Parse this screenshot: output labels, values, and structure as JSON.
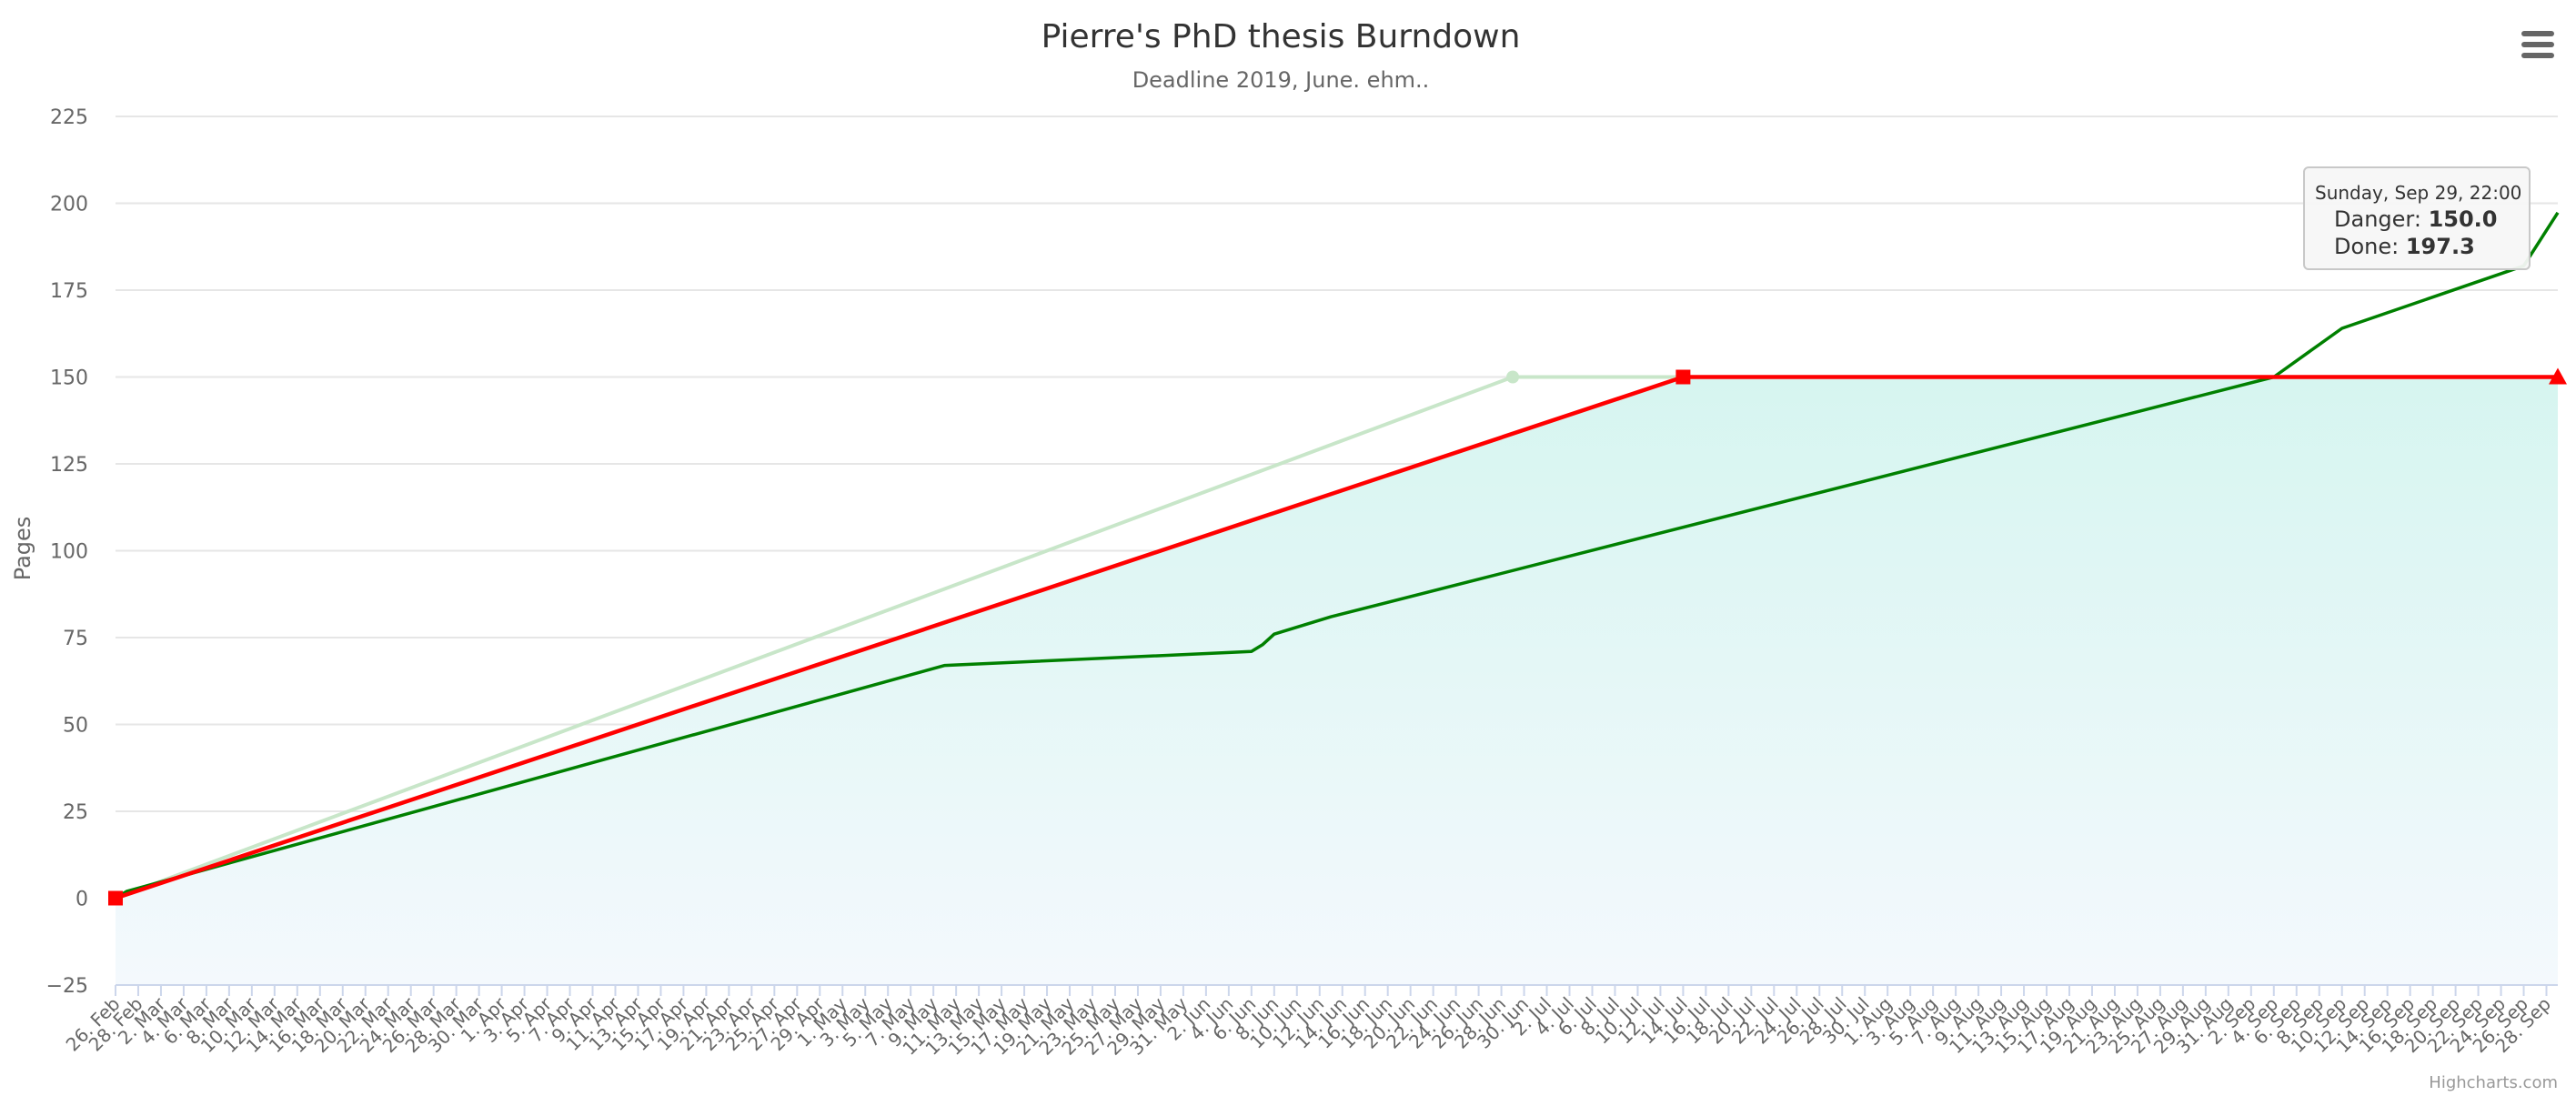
{
  "chart_data": {
    "type": "line",
    "title": "Pierre's PhD thesis Burndown",
    "subtitle": "Deadline 2019, June. ehm..",
    "ylabel": "Pages",
    "xlabel": "",
    "ylim": [
      -25,
      225
    ],
    "yticks": [
      "−25",
      "0",
      "25",
      "50",
      "75",
      "100",
      "125",
      "150",
      "175",
      "200",
      "225"
    ],
    "x_range": [
      "2019-02-26",
      "2019-09-29"
    ],
    "x_tick_labels": [
      "26. Feb",
      "28. Feb",
      "2. Mar",
      "4. Mar",
      "6. Mar",
      "8. Mar",
      "10. Mar",
      "12. Mar",
      "14. Mar",
      "16. Mar",
      "18. Mar",
      "20. Mar",
      "22. Mar",
      "24. Mar",
      "26. Mar",
      "28. Mar",
      "30. Mar",
      "1. Apr",
      "3. Apr",
      "5. Apr",
      "7. Apr",
      "9. Apr",
      "11. Apr",
      "13. Apr",
      "15. Apr",
      "17. Apr",
      "19. Apr",
      "21. Apr",
      "23. Apr",
      "25. Apr",
      "27. Apr",
      "29. Apr",
      "1. May",
      "3. May",
      "5. May",
      "7. May",
      "9. May",
      "11. May",
      "13. May",
      "15. May",
      "17. May",
      "19. May",
      "21. May",
      "23. May",
      "25. May",
      "27. May",
      "29. May",
      "31. May",
      "2. Jun",
      "4. Jun",
      "6. Jun",
      "8. Jun",
      "10. Jun",
      "12. Jun",
      "14. Jun",
      "16. Jun",
      "18. Jun",
      "20. Jun",
      "22. Jun",
      "24. Jun",
      "26. Jun",
      "28. Jun",
      "30. Jun",
      "2. Jul",
      "4. Jul",
      "6. Jul",
      "8. Jul",
      "10. Jul",
      "12. Jul",
      "14. Jul",
      "16. Jul",
      "18. Jul",
      "20. Jul",
      "22. Jul",
      "24. Jul",
      "26. Jul",
      "28. Jul",
      "30. Jul",
      "1. Aug",
      "3. Aug",
      "5. Aug",
      "7. Aug",
      "9. Aug",
      "11. Aug",
      "13. Aug",
      "15. Aug",
      "17. Aug",
      "19. Aug",
      "21. Aug",
      "23. Aug",
      "25. Aug",
      "27. Aug",
      "29. Aug",
      "31. Aug",
      "2. Sep",
      "4. Sep",
      "6. Sep",
      "8. Sep",
      "10. Sep",
      "12. Sep",
      "14. Sep",
      "16. Sep",
      "18. Sep",
      "20. Sep",
      "22. Sep",
      "24. Sep",
      "26. Sep",
      "28. Sep"
    ],
    "grid": true,
    "series": [
      {
        "name": "Danger",
        "type": "area",
        "color": "#ff0000",
        "points": [
          [
            "2019-02-26",
            0
          ],
          [
            "2019-07-14",
            150
          ],
          [
            "2019-09-29",
            150
          ]
        ]
      },
      {
        "name": "Done",
        "type": "line",
        "color": "#008000",
        "points": [
          [
            "2019-02-26",
            0
          ],
          [
            "2019-02-27",
            2
          ],
          [
            "2019-05-10",
            67
          ],
          [
            "2019-06-06",
            71
          ],
          [
            "2019-06-07",
            73
          ],
          [
            "2019-06-08",
            76
          ],
          [
            "2019-06-13",
            81
          ],
          [
            "2019-08-23",
            140
          ],
          [
            "2019-09-04",
            150
          ],
          [
            "2019-09-10",
            164
          ],
          [
            "2019-09-26",
            182
          ],
          [
            "2019-09-29",
            197.3
          ]
        ]
      },
      {
        "type": "line",
        "color": "#c8e6c9",
        "points": [
          [
            "2019-02-26",
            0
          ],
          [
            "2019-06-29",
            150
          ],
          [
            "2019-07-14",
            150
          ]
        ]
      }
    ]
  },
  "tooltip": {
    "title": "Sunday, Sep 29, 22:00",
    "rows": [
      {
        "label": "Danger: ",
        "value": "150.0"
      },
      {
        "label": "Done: ",
        "value": "197.3"
      }
    ]
  },
  "menu_icon": "hamburger-menu-icon",
  "credits": "Highcharts.com"
}
